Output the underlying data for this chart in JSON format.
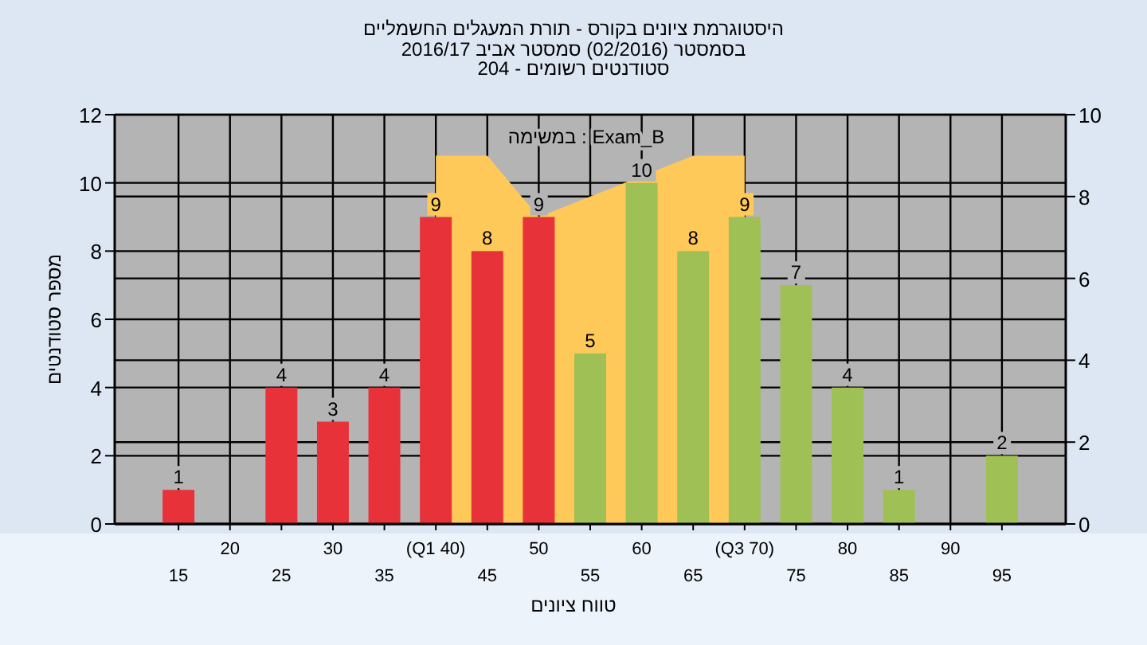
{
  "chart_data": {
    "type": "bar",
    "title": "היסטוגרמת ציונים בקורס - תורת המעגלים החשמליים",
    "subtitle": [
      "בסמסטר  (02/2016)  סמסטר אביב 2016/17",
      "סטודנטים רשומים - 204"
    ],
    "xlabel": "טווח ציונים",
    "ylabel": "מספר סטודנטים",
    "annotations": [
      "במשימה : Exam_B"
    ],
    "categories": [
      "15",
      "20",
      "25",
      "30",
      "35",
      "(Q1 40)",
      "45",
      "50",
      "55",
      "60",
      "65",
      "(Q3 70)",
      "75",
      "80",
      "85",
      "90",
      "95"
    ],
    "series": [
      {
        "type": "area",
        "axis": "y2",
        "color": "#fec958",
        "values": [
          null,
          null,
          null,
          null,
          null,
          9,
          9,
          7.5,
          8,
          null,
          9,
          9,
          null,
          null,
          null,
          null,
          null
        ]
      },
      {
        "type": "bar",
        "axis": "y",
        "colors": [
          "#e8323a",
          "#e8323a",
          "#e8323a",
          "#e8323a",
          "#e8323a",
          "#e8323a",
          "#e8323a",
          "#e8323a",
          "#9fc054",
          "#9fc054",
          "#9fc054",
          "#9fc054",
          "#9fc054",
          "#9fc054",
          "#9fc054",
          "#9fc054",
          "#9fc054"
        ],
        "values": [
          1,
          0,
          4,
          3,
          4,
          9,
          8,
          9,
          5,
          10,
          8,
          9,
          7,
          4,
          1,
          0,
          2
        ],
        "value_labels": [
          "1",
          null,
          "4",
          "3",
          "4",
          "9",
          "8",
          "9",
          "5",
          "10",
          "8",
          "9",
          "7",
          "4",
          "1",
          null,
          "2"
        ]
      }
    ],
    "ylim": [
      0,
      12
    ],
    "yticks": [
      0,
      2,
      4,
      6,
      8,
      10,
      12
    ],
    "y2lim": [
      0,
      10
    ],
    "y2ticks": [
      0,
      2,
      4,
      6,
      8,
      10
    ],
    "grid": true
  }
}
